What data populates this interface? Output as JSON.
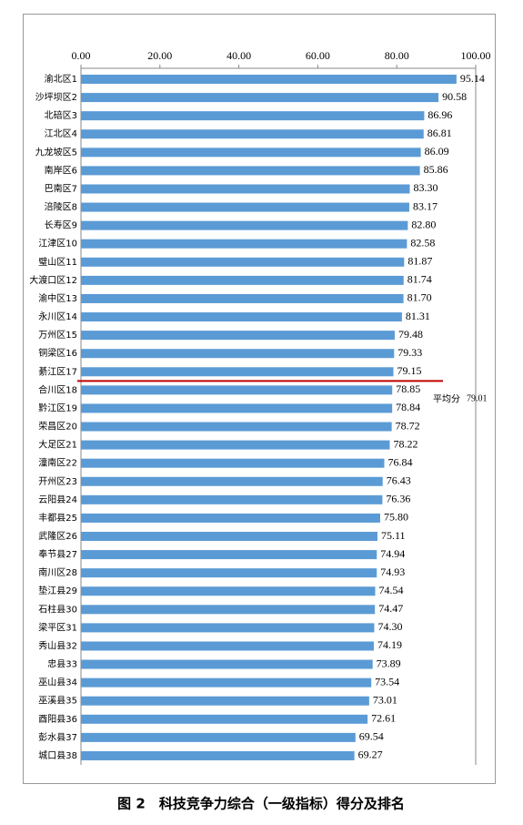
{
  "chart_data": {
    "type": "hbar",
    "title": "图 2　科技竞争力综合（一级指标）得分及排名",
    "categories": [
      "渝北区1",
      "沙坪坝区2",
      "北碚区3",
      "江北区4",
      "九龙坡区5",
      "南岸区6",
      "巴南区7",
      "涪陵区8",
      "长寿区9",
      "江津区10",
      "璧山区11",
      "大渡口区12",
      "渝中区13",
      "永川区14",
      "万州区15",
      "铜梁区16",
      "綦江区17",
      "合川区18",
      "黔江区19",
      "荣昌区20",
      "大足区21",
      "潼南区22",
      "开州区23",
      "云阳县24",
      "丰都县25",
      "武隆区26",
      "奉节县27",
      "南川区28",
      "垫江县29",
      "石柱县30",
      "梁平区31",
      "秀山县32",
      "忠县33",
      "巫山县34",
      "巫溪县35",
      "酉阳县36",
      "彭水县37",
      "城口县38"
    ],
    "values": [
      95.14,
      90.58,
      86.96,
      86.81,
      86.09,
      85.86,
      83.3,
      83.17,
      82.8,
      82.58,
      81.87,
      81.74,
      81.7,
      81.31,
      79.48,
      79.33,
      79.15,
      78.85,
      78.84,
      78.72,
      78.22,
      76.84,
      76.43,
      76.36,
      75.8,
      75.11,
      74.94,
      74.93,
      74.54,
      74.47,
      74.3,
      74.19,
      73.89,
      73.54,
      73.01,
      72.61,
      69.54,
      69.27
    ],
    "value_labels": [
      "95.14",
      "90.58",
      "86.96",
      "86.81",
      "86.09",
      "85.86",
      "83.30",
      "83.17",
      "82.80",
      "82.58",
      "81.87",
      "81.74",
      "81.70",
      "81.31",
      "79.48",
      "79.33",
      "79.15",
      "78.85",
      "78.84",
      "78.72",
      "78.22",
      "76.84",
      "76.43",
      "76.36",
      "75.80",
      "75.11",
      "74.94",
      "74.93",
      "74.54",
      "74.47",
      "74.30",
      "74.19",
      "73.89",
      "73.54",
      "73.01",
      "72.61",
      "69.54",
      "69.27"
    ],
    "color": "#5b9bd5",
    "xlim": [
      0,
      100
    ],
    "xticks": [
      {
        "value": 0,
        "label": "0.00"
      },
      {
        "value": 20,
        "label": "20.00"
      },
      {
        "value": 40,
        "label": "40.00"
      },
      {
        "value": 60,
        "label": "60.00"
      },
      {
        "value": 80,
        "label": "80.00"
      },
      {
        "value": 100,
        "label": "100.00"
      }
    ],
    "average": {
      "label": "平均分",
      "value": 79.01,
      "color": "#c00000"
    }
  }
}
